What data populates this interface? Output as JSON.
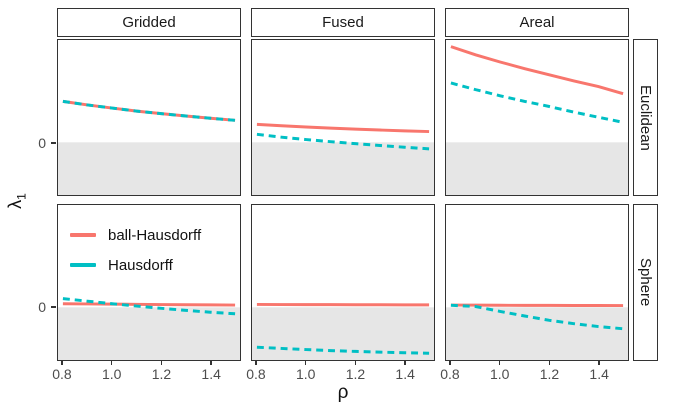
{
  "figure_title": "faceted line plot of lambda_1 versus rho",
  "facets": {
    "columns": [
      "Gridded",
      "Fused",
      "Areal"
    ],
    "rows": [
      "Euclidean",
      "Sphere"
    ]
  },
  "axes": {
    "x_label": "ρ",
    "y_label_symbol": "λ",
    "y_label_subscript": "1",
    "x_tick_labels": [
      "0.8",
      "1.0",
      "1.2",
      "1.4"
    ],
    "y_tick_label": "0"
  },
  "legend": {
    "items": [
      {
        "label": "ball-Hausdorff",
        "color": "#F8766D",
        "linetype": "solid"
      },
      {
        "label": "Hausdorff",
        "color": "#00BFC4",
        "linetype": "dashed"
      }
    ]
  },
  "colors": {
    "shaded_region": "#E6E6E6",
    "panel_border": "#333333",
    "tick_text": "#4d4d4d"
  },
  "chart_data": {
    "type": "line",
    "xlabel": "ρ",
    "ylabel": "λ1",
    "x": [
      0.8,
      0.9,
      1.0,
      1.1,
      1.2,
      1.3,
      1.4,
      1.5
    ],
    "x_ticks": [
      0.8,
      1.0,
      1.2,
      1.4
    ],
    "xlim": [
      0.78,
      1.52
    ],
    "ylim": [
      -0.515,
      1.0
    ],
    "y_axis_note": "only y=0 is labeled; region y<0 shaded gray; values below are in relative panel units",
    "grid": false,
    "legend_position": "inside bottom-left panel (Gridded/Sphere), top-left corner",
    "panels": [
      {
        "column": "Gridded",
        "row": "Euclidean",
        "series": [
          {
            "name": "ball-Hausdorff",
            "values": [
              0.4,
              0.365,
              0.335,
              0.305,
              0.28,
              0.257,
              0.235,
              0.215
            ]
          },
          {
            "name": "Hausdorff",
            "values": [
              0.4,
              0.365,
              0.335,
              0.305,
              0.28,
              0.257,
              0.235,
              0.215
            ]
          }
        ],
        "note": "both curves overlap exactly"
      },
      {
        "column": "Fused",
        "row": "Euclidean",
        "series": [
          {
            "name": "ball-Hausdorff",
            "values": [
              0.175,
              0.162,
              0.15,
              0.139,
              0.129,
              0.12,
              0.112,
              0.105
            ]
          },
          {
            "name": "Hausdorff",
            "values": [
              0.078,
              0.05,
              0.027,
              0.006,
              -0.013,
              -0.031,
              -0.048,
              -0.064
            ]
          }
        ]
      },
      {
        "column": "Areal",
        "row": "Euclidean",
        "series": [
          {
            "name": "ball-Hausdorff",
            "values": [
              0.935,
              0.855,
              0.785,
              0.72,
              0.66,
              0.6,
              0.545,
              0.475
            ]
          },
          {
            "name": "Hausdorff",
            "values": [
              0.58,
              0.515,
              0.455,
              0.4,
              0.35,
              0.295,
              0.245,
              0.195
            ]
          }
        ]
      },
      {
        "column": "Gridded",
        "row": "Sphere",
        "series": [
          {
            "name": "ball-Hausdorff",
            "values": [
              0.035,
              0.033,
              0.031,
              0.029,
              0.027,
              0.025,
              0.024,
              0.022
            ]
          },
          {
            "name": "Hausdorff",
            "values": [
              0.085,
              0.06,
              0.035,
              0.012,
              -0.01,
              -0.03,
              -0.048,
              -0.063
            ]
          }
        ]
      },
      {
        "column": "Fused",
        "row": "Sphere",
        "series": [
          {
            "name": "ball-Hausdorff",
            "values": [
              0.028,
              0.027,
              0.026,
              0.026,
              0.025,
              0.025,
              0.024,
              0.024
            ]
          },
          {
            "name": "Hausdorff",
            "values": [
              -0.39,
              -0.402,
              -0.413,
              -0.423,
              -0.431,
              -0.438,
              -0.444,
              -0.449
            ]
          }
        ]
      },
      {
        "column": "Areal",
        "row": "Sphere",
        "series": [
          {
            "name": "ball-Hausdorff",
            "values": [
              0.022,
              0.021,
              0.02,
              0.019,
              0.019,
              0.018,
              0.018,
              0.017
            ]
          },
          {
            "name": "Hausdorff",
            "values": [
              0.02,
              0.008,
              -0.04,
              -0.085,
              -0.127,
              -0.16,
              -0.188,
              -0.21
            ]
          }
        ]
      }
    ]
  }
}
